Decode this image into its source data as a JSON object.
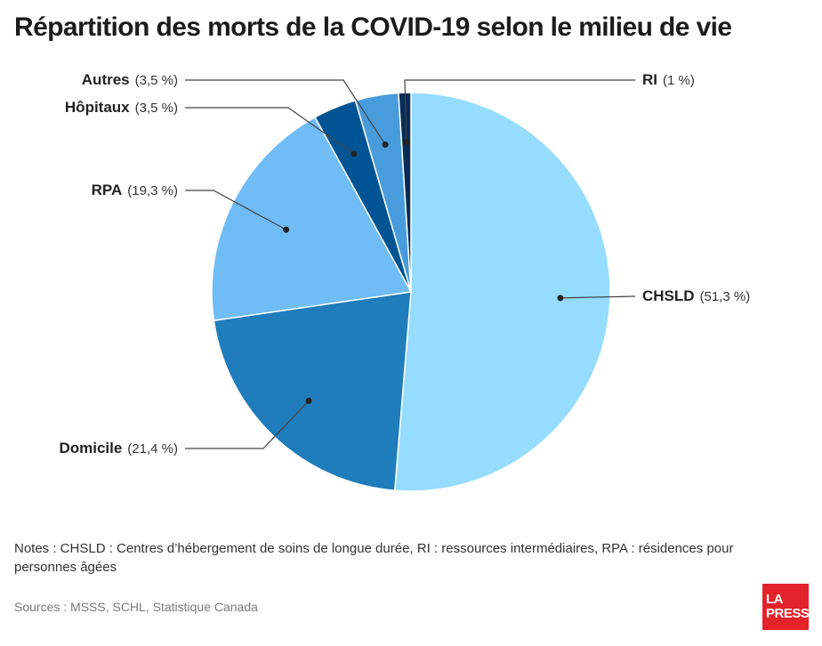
{
  "header": {
    "title": "Répartition des morts de la COVID-19 selon le milieu de vie"
  },
  "chart_data": {
    "type": "pie",
    "title": "Répartition des morts de la COVID-19 selon le milieu de vie",
    "categories": [
      "CHSLD",
      "Domicile",
      "RPA",
      "Hôpitaux",
      "Autres",
      "RI"
    ],
    "values": [
      51.3,
      21.4,
      19.3,
      3.5,
      3.5,
      1
    ],
    "value_labels": [
      "(51,3 %)",
      "(21,4 %)",
      "(19,3 %)",
      "(3,5 %)",
      "(3,5 %)",
      "(1 %)"
    ],
    "colors": [
      "#95dcff",
      "#1f7dbc",
      "#6fbcf6",
      "#015494",
      "#489cdb",
      "#082c56"
    ],
    "legend": "none",
    "grid": false
  },
  "footer": {
    "notes": "Notes : CHSLD : Centres d’hébergement de soins de longue durée, RI : ressources intermédiaires, RPA : résidences pour personnes âgées",
    "sources": "Sources : MSSS, SCHL, Statistique Canada"
  },
  "logo": {
    "line1": "LA",
    "line2": "PRESSE"
  }
}
